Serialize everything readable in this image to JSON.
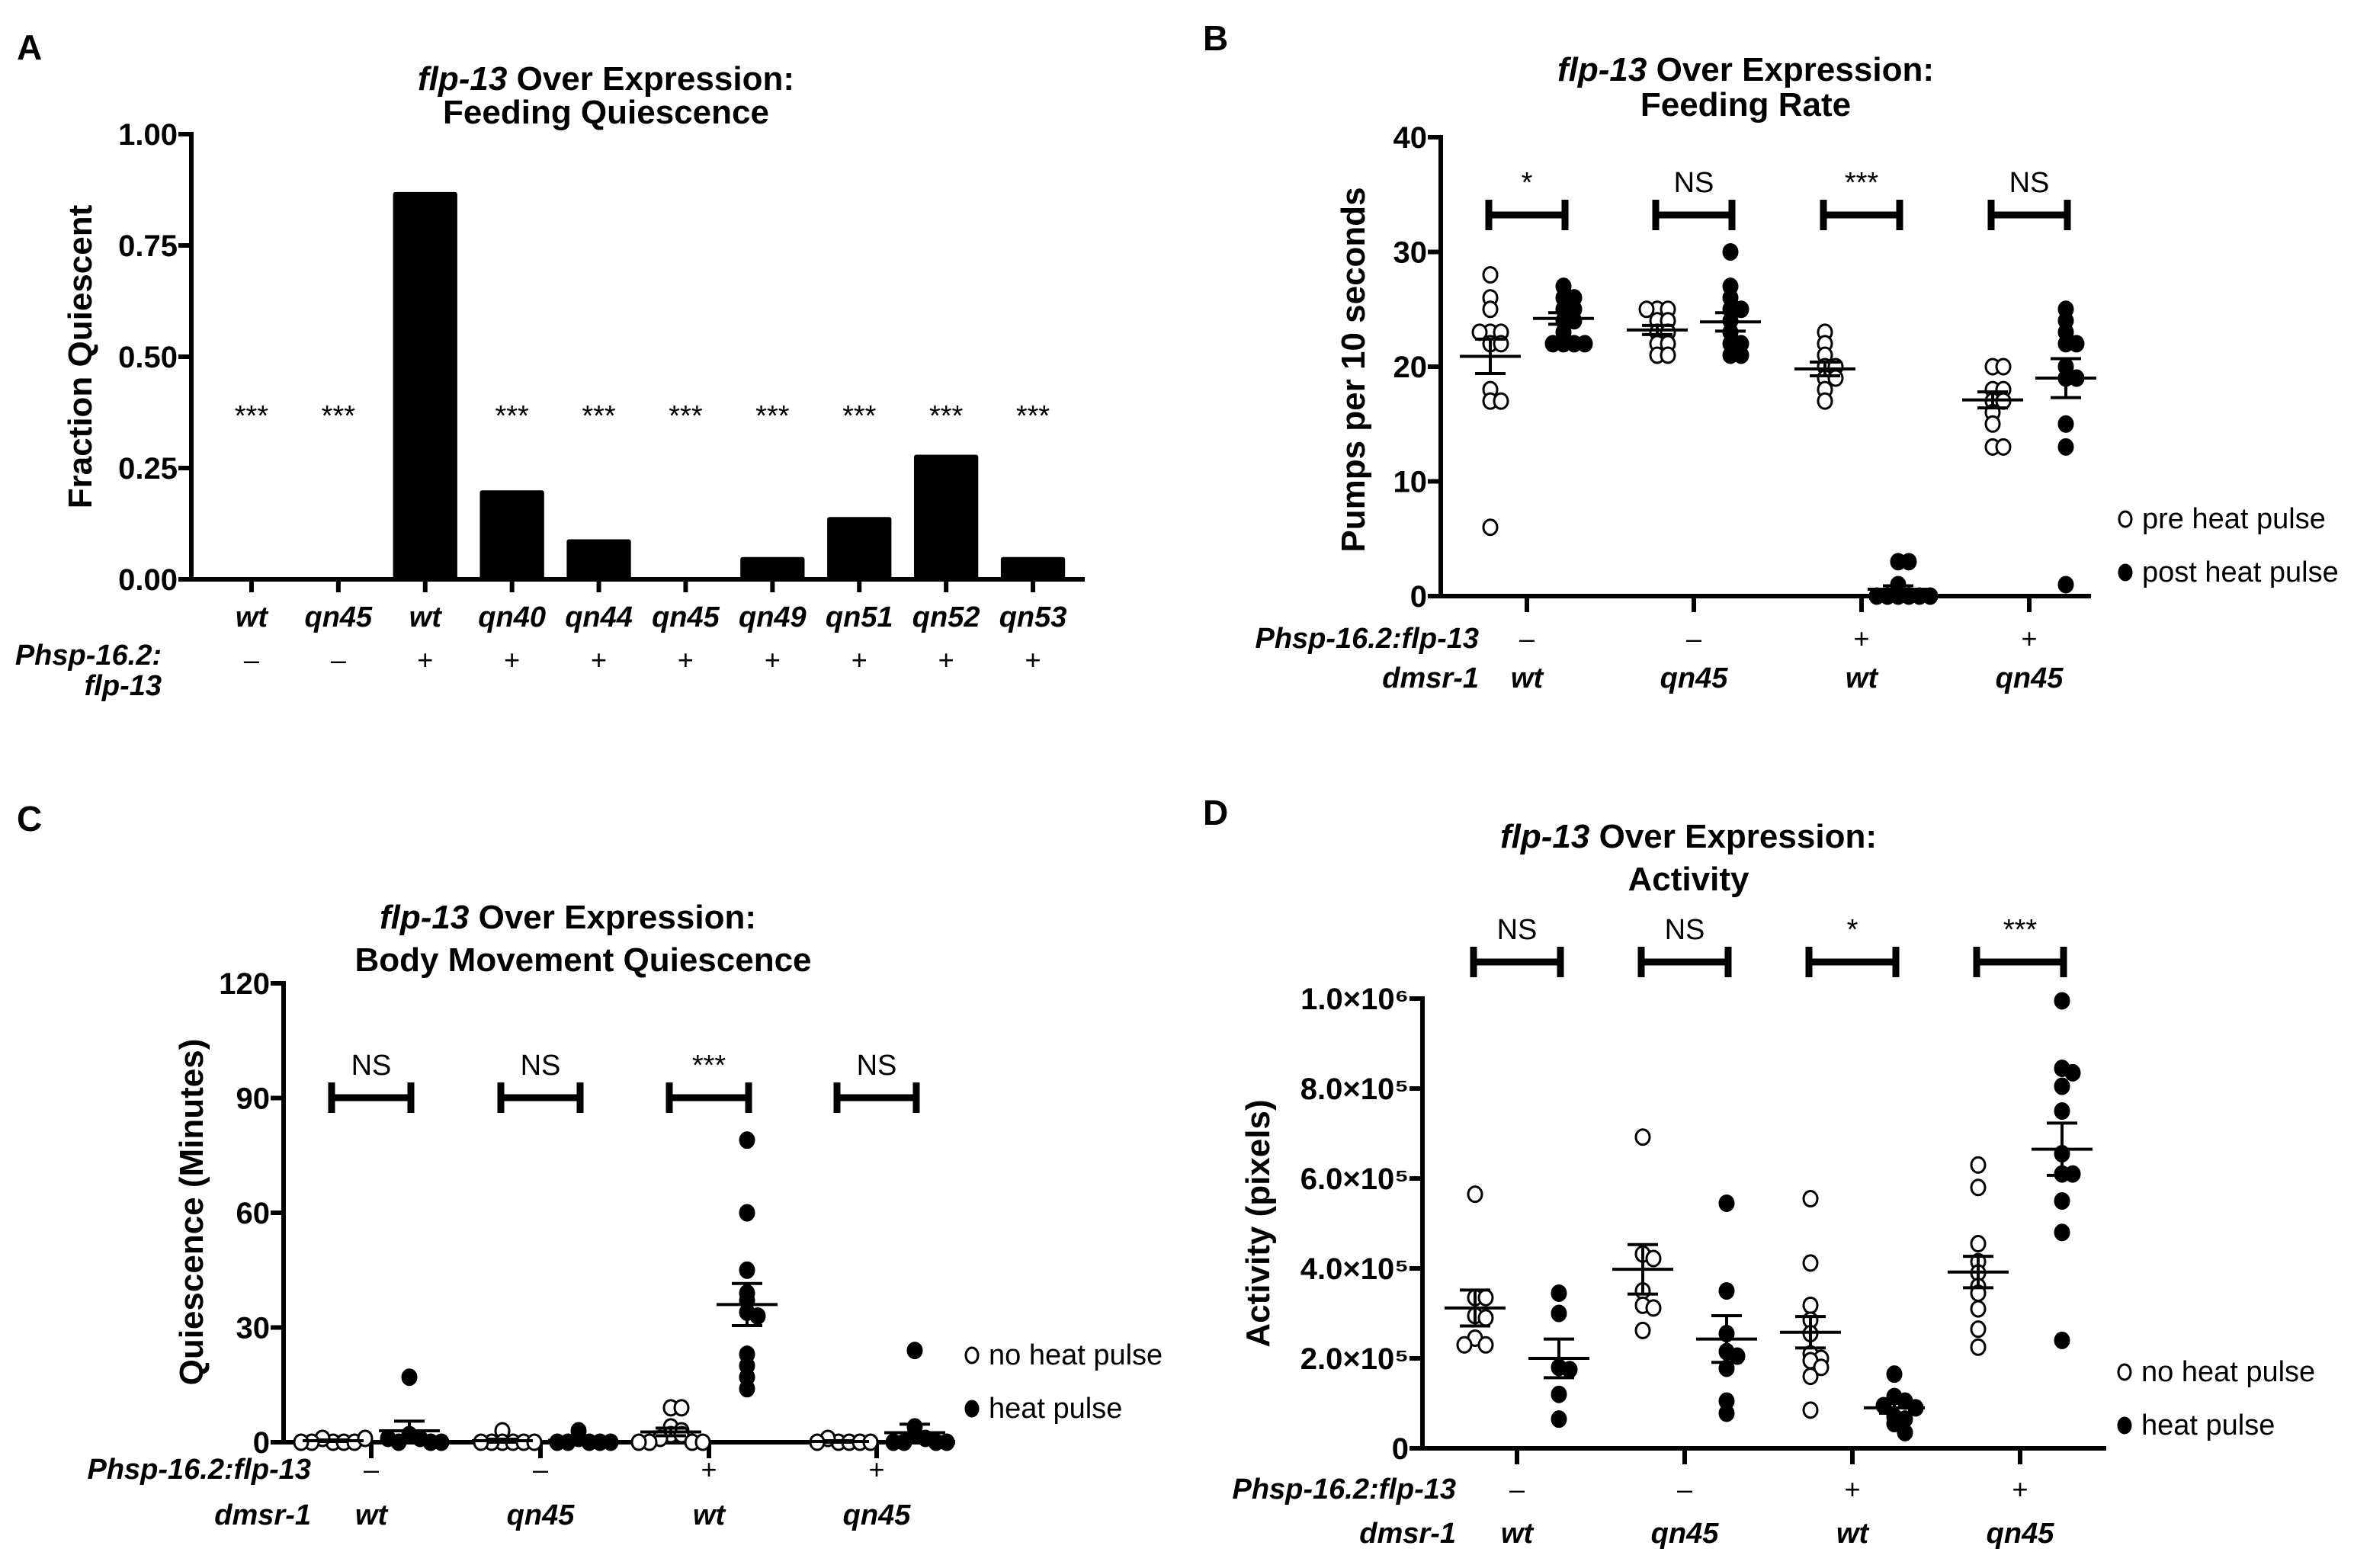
{
  "chart_data": [
    {
      "id": "A",
      "panel_label": "A",
      "type": "bar",
      "title_italic": "flp-13",
      "title_line1_rest": " Over Expression:",
      "title_line2": "Feeding Quiescence",
      "ylabel": "Fraction Quiescent",
      "ylim": [
        0,
        1.0
      ],
      "yticks": [
        "0.00",
        "0.25",
        "0.50",
        "0.75",
        "1.00"
      ],
      "ytick_values": [
        0,
        0.25,
        0.5,
        0.75,
        1.0
      ],
      "categories": [
        "wt",
        "qn45",
        "wt",
        "qn40",
        "qn44",
        "qn45",
        "qn49",
        "qn51",
        "qn52",
        "qn53"
      ],
      "values": [
        0,
        0,
        0.87,
        0.2,
        0.09,
        0,
        0.05,
        0.14,
        0.28,
        0.05
      ],
      "significance": [
        "***",
        "***",
        "",
        "***",
        "***",
        "***",
        "***",
        "***",
        "***",
        "***"
      ],
      "row_label_line1": "Phsp-16.2:",
      "row_label_line2": "flp-13",
      "transgene": [
        "–",
        "–",
        "+",
        "+",
        "+",
        "+",
        "+",
        "+",
        "+",
        "+"
      ]
    },
    {
      "id": "B",
      "panel_label": "B",
      "type": "scatter",
      "title_italic": "flp-13",
      "title_line1_rest": " Over Expression:",
      "title_line2": "Feeding Rate",
      "ylabel": "Pumps per 10 seconds",
      "ylim": [
        0,
        40
      ],
      "yticks": [
        "0",
        "10",
        "20",
        "30",
        "40"
      ],
      "ytick_values": [
        0,
        10,
        20,
        30,
        40
      ],
      "row1_label": "Phsp-16.2:flp-13",
      "row2_label": "dmsr-1",
      "groups": [
        {
          "transgene": "–",
          "genotype": "wt",
          "significance": "*",
          "pre": {
            "values": [
              28,
              26,
              25,
              23,
              23,
              23,
              22,
              22,
              18,
              17,
              17,
              6
            ],
            "mean": 20.9,
            "sem": 1.5
          },
          "post": {
            "values": [
              27,
              26,
              26,
              25,
              25,
              24,
              24,
              23,
              22,
              22,
              22,
              22
            ],
            "mean": 24.2,
            "sem": 0.5
          }
        },
        {
          "transgene": "–",
          "genotype": "qn45",
          "significance": "NS",
          "pre": {
            "values": [
              25,
              25,
              25,
              24,
              24,
              23,
              23,
              22,
              22,
              21,
              21
            ],
            "mean": 23.2,
            "sem": 0.4
          },
          "post": {
            "values": [
              30,
              27,
              26,
              25,
              25,
              24,
              23,
              22,
              22,
              21,
              21
            ],
            "mean": 23.9,
            "sem": 0.8
          }
        },
        {
          "transgene": "+",
          "genotype": "wt",
          "significance": "***",
          "pre": {
            "values": [
              23,
              22,
              21,
              20,
              20,
              19,
              19,
              18,
              17
            ],
            "mean": 19.8,
            "sem": 0.6
          },
          "post": {
            "values": [
              3,
              3,
              1,
              0,
              0,
              0,
              0,
              0,
              0
            ],
            "mean": 0.6,
            "sem": 0.3
          }
        },
        {
          "transgene": "+",
          "genotype": "qn45",
          "significance": "NS",
          "pre": {
            "values": [
              20,
              20,
              18,
              18,
              17,
              17,
              16,
              15,
              13,
              13
            ],
            "mean": 17.1,
            "sem": 0.7
          },
          "post": {
            "values": [
              25,
              24,
              23,
              22,
              22,
              20,
              19,
              19,
              15,
              13,
              1
            ],
            "mean": 19.0,
            "sem": 1.7
          }
        }
      ],
      "legend": [
        "pre heat pulse",
        "post heat pulse"
      ],
      "legend_position": "right"
    },
    {
      "id": "C",
      "panel_label": "C",
      "type": "scatter",
      "title_italic": "flp-13",
      "title_line1_rest": " Over Expression:",
      "title_line2": "Body Movement  Quiescence",
      "ylabel": "Quiescence (Minutes)",
      "ylim": [
        0,
        120
      ],
      "yticks": [
        "0",
        "30",
        "60",
        "90",
        "120"
      ],
      "ytick_values": [
        0,
        30,
        60,
        90,
        120
      ],
      "row1_label": "Phsp-16.2:flp-13",
      "row2_label": "dmsr-1",
      "groups": [
        {
          "transgene": "–",
          "genotype": "wt",
          "significance": "NS",
          "pre": {
            "values": [
              0,
              0,
              1,
              0,
              0,
              1,
              0
            ],
            "mean": 0.4,
            "sem": 0.2
          },
          "post": {
            "values": [
              17,
              2,
              1,
              0,
              0,
              1,
              0
            ],
            "mean": 3.0,
            "sem": 2.5
          }
        },
        {
          "transgene": "–",
          "genotype": "qn45",
          "significance": "NS",
          "pre": {
            "values": [
              3,
              0,
              0,
              0,
              0,
              0,
              0
            ],
            "mean": 0.4,
            "sem": 0.4
          },
          "post": {
            "values": [
              3,
              1,
              0,
              0,
              0,
              0,
              0
            ],
            "mean": 0.5,
            "sem": 0.4
          }
        },
        {
          "transgene": "+",
          "genotype": "wt",
          "significance": "***",
          "pre": {
            "values": [
              9,
              9,
              4,
              3,
              2,
              2,
              1,
              0,
              0,
              0,
              0
            ],
            "mean": 2.7,
            "sem": 1.0
          },
          "post": {
            "values": [
              79,
              60,
              45,
              39,
              37,
              34,
              33,
              23,
              20,
              17,
              14
            ],
            "mean": 36,
            "sem": 5.5
          }
        },
        {
          "transgene": "+",
          "genotype": "qn45",
          "significance": "NS",
          "pre": {
            "values": [
              0,
              0,
              1,
              0,
              0,
              0
            ],
            "mean": 0.2,
            "sem": 0.2
          },
          "post": {
            "values": [
              24,
              4,
              2,
              1,
              0,
              0,
              0,
              0
            ],
            "mean": 2.5,
            "sem": 2.2
          }
        }
      ],
      "legend": [
        "no heat pulse",
        "heat pulse"
      ],
      "legend_position": "right"
    },
    {
      "id": "D",
      "panel_label": "D",
      "type": "scatter",
      "title_italic": "flp-13",
      "title_line1_rest": " Over Expression:",
      "title_line2": "Activity",
      "ylabel": "Activity (pixels)",
      "ylim": [
        0,
        1000000
      ],
      "yticks": [
        "0",
        "2.0×10⁵",
        "4.0×10⁵",
        "6.0×10⁵",
        "8.0×10⁵",
        "1.0×10⁶"
      ],
      "ytick_values": [
        0,
        200000,
        400000,
        600000,
        800000,
        1000000
      ],
      "row1_label": "Phsp-16.2:flp-13",
      "row2_label": "dmsr-1",
      "groups": [
        {
          "transgene": "–",
          "genotype": "wt",
          "significance": "NS",
          "pre": {
            "values": [
              565000,
              335000,
              335000,
              295000,
              290000,
              245000,
              230000,
              230000
            ],
            "mean": 312000,
            "sem": 40000
          },
          "post": {
            "values": [
              345000,
              300000,
              180000,
              175000,
              120000,
              65000
            ],
            "mean": 200000,
            "sem": 43000
          },
          "post_mean_label": ""
        },
        {
          "transgene": "–",
          "genotype": "qn45",
          "significance": "NS",
          "pre": {
            "values": [
              692000,
              432000,
              422000,
              350000,
              318000,
              312000,
              262000
            ],
            "mean": 398000,
            "sem": 55000
          },
          "post": {
            "values": [
              545000,
              350000,
              255000,
              215000,
              205000,
              178000,
              105000,
              78000
            ],
            "mean": 243000,
            "sem": 52000
          }
        },
        {
          "transgene": "+",
          "genotype": "wt",
          "significance": "*",
          "pre": {
            "values": [
              555000,
              412000,
              318000,
              285000,
              255000,
              210000,
              200000,
              195000,
              180000,
              160000,
              85000
            ],
            "mean": 258000,
            "sem": 35000
          },
          "post": {
            "values": [
              165000,
              115000,
              105000,
              95000,
              90000,
              70000,
              65000,
              55000,
              35000
            ],
            "mean": 90000,
            "sem": 12000
          }
        },
        {
          "transgene": "+",
          "genotype": "qn45",
          "significance": "***",
          "pre": {
            "values": [
              630000,
              580000,
              455000,
              415000,
              390000,
              360000,
              345000,
              310000,
              265000,
              225000
            ],
            "mean": 392000,
            "sem": 35000
          },
          "post": {
            "values": [
              995000,
              845000,
              835000,
              805000,
              750000,
              655000,
              610000,
              610000,
              550000,
              480000,
              240000
            ],
            "mean": 665000,
            "sem": 58000
          }
        }
      ],
      "legend": [
        "no heat pulse",
        "heat pulse"
      ],
      "legend_position": "right"
    }
  ]
}
